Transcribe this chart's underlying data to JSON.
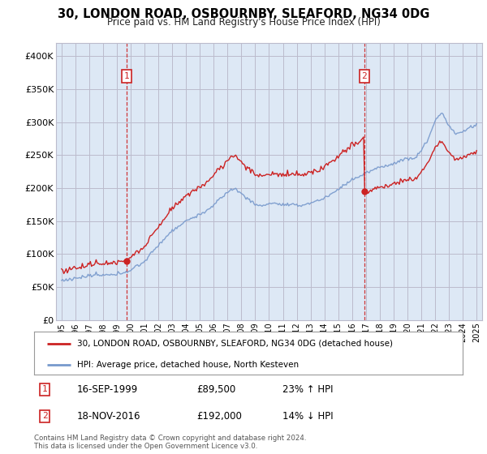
{
  "title": "30, LONDON ROAD, OSBOURNBY, SLEAFORD, NG34 0DG",
  "subtitle": "Price paid vs. HM Land Registry's House Price Index (HPI)",
  "ylabel_ticks": [
    "£0",
    "£50K",
    "£100K",
    "£150K",
    "£200K",
    "£250K",
    "£300K",
    "£350K",
    "£400K"
  ],
  "ytick_values": [
    0,
    50000,
    100000,
    150000,
    200000,
    250000,
    300000,
    350000,
    400000
  ],
  "ylim": [
    0,
    420000
  ],
  "xlim_start": 1994.6,
  "xlim_end": 2025.4,
  "legend_line1": "30, LONDON ROAD, OSBOURNBY, SLEAFORD, NG34 0DG (detached house)",
  "legend_line2": "HPI: Average price, detached house, North Kesteven",
  "sale1_date": "16-SEP-1999",
  "sale1_price": "£89,500",
  "sale1_hpi": "23% ↑ HPI",
  "sale1_x": 1999.71,
  "sale1_y": 89500,
  "sale2_date": "18-NOV-2016",
  "sale2_price": "£192,000",
  "sale2_hpi": "14% ↓ HPI",
  "sale2_x": 2016.88,
  "sale2_y": 192000,
  "red_color": "#cc2222",
  "blue_color": "#7799cc",
  "plot_bg_color": "#dde8f5",
  "bg_color": "#ffffff",
  "grid_color": "#bbbbcc",
  "footer": "Contains HM Land Registry data © Crown copyright and database right 2024.\nThis data is licensed under the Open Government Licence v3.0."
}
